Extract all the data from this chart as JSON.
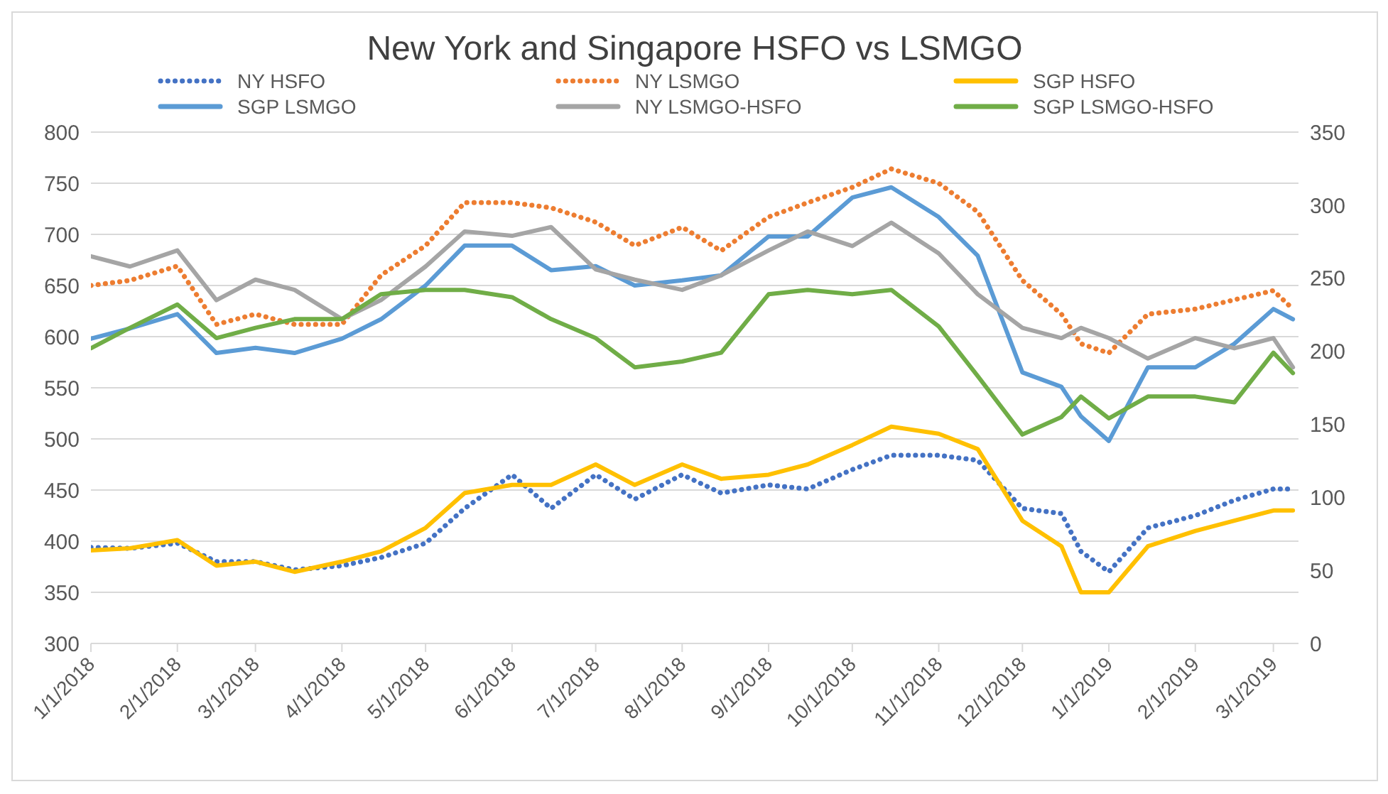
{
  "chart_data": {
    "type": "line",
    "title": "New York and Singapore HSFO vs LSMGO",
    "x": [
      "2018-01-01",
      "2018-01-15",
      "2018-02-01",
      "2018-02-15",
      "2018-03-01",
      "2018-03-15",
      "2018-04-01",
      "2018-04-15",
      "2018-05-01",
      "2018-05-15",
      "2018-06-01",
      "2018-06-15",
      "2018-07-01",
      "2018-07-15",
      "2018-08-01",
      "2018-08-15",
      "2018-09-01",
      "2018-09-15",
      "2018-10-01",
      "2018-10-15",
      "2018-11-01",
      "2018-11-15",
      "2018-12-01",
      "2018-12-15",
      "2018-12-22",
      "2019-01-01",
      "2019-01-15",
      "2019-02-01",
      "2019-02-15",
      "2019-03-01",
      "2019-03-08"
    ],
    "series": [
      {
        "name": "NY HSFO",
        "color": "#4472c4",
        "line_style": "dotted",
        "values": [
          394,
          393,
          398,
          380,
          380,
          372,
          376,
          384,
          398,
          432,
          465,
          432,
          465,
          441,
          465,
          447,
          455,
          451,
          470,
          484,
          484,
          479,
          432,
          427,
          390,
          370,
          413,
          425,
          440,
          451,
          451
        ]
      },
      {
        "name": "NY LSMGO",
        "color": "#ed7d31",
        "line_style": "dotted",
        "values": [
          650,
          655,
          669,
          612,
          622,
          612,
          612,
          660,
          689,
          731,
          731,
          726,
          712,
          689,
          707,
          684,
          717,
          731,
          746,
          764,
          750,
          722,
          655,
          622,
          593,
          584,
          622,
          627,
          636,
          645,
          627
        ]
      },
      {
        "name": "SGP HSFO",
        "color": "#ffc000",
        "line_style": "solid",
        "values": [
          391,
          393,
          401,
          376,
          380,
          370,
          380,
          390,
          413,
          447,
          455,
          455,
          475,
          455,
          475,
          461,
          465,
          475,
          494,
          512,
          505,
          490,
          420,
          395,
          350,
          350,
          395,
          410,
          420,
          430,
          430
        ]
      },
      {
        "name": "SGP LSMGO",
        "color": "#5b9bd5",
        "line_style": "solid",
        "values": [
          598,
          608,
          622,
          584,
          589,
          584,
          598,
          617,
          650,
          689,
          689,
          665,
          669,
          650,
          655,
          660,
          698,
          698,
          736,
          746,
          717,
          679,
          565,
          551,
          522,
          498,
          570,
          570,
          593,
          627,
          617
        ]
      },
      {
        "name": "NY LSMGO-HSFO",
        "color": "#a5a5a5",
        "line_style": "solid",
        "axis": "y2",
        "values": [
          265,
          258,
          269,
          235,
          249,
          242,
          222,
          235,
          258,
          282,
          279,
          285,
          256,
          249,
          242,
          252,
          269,
          282,
          272,
          288,
          267,
          239,
          216,
          209,
          216,
          209,
          195,
          209,
          202,
          209,
          189
        ]
      },
      {
        "name": "SGP LSMGO-HSFO",
        "color": "#70ad47",
        "line_style": "solid",
        "axis": "y2",
        "values": [
          202,
          216,
          232,
          209,
          216,
          222,
          222,
          239,
          242,
          242,
          237,
          222,
          209,
          189,
          193,
          199,
          239,
          242,
          239,
          242,
          217,
          183,
          143,
          155,
          169,
          154,
          169,
          169,
          165,
          199,
          185
        ]
      }
    ],
    "xlim": [
      "2018-01-01",
      "2019-03-10"
    ],
    "xticks": [
      {
        "value": "2018-01-01",
        "label": "1/1/2018"
      },
      {
        "value": "2018-02-01",
        "label": "2/1/2018"
      },
      {
        "value": "2018-03-01",
        "label": "3/1/2018"
      },
      {
        "value": "2018-04-01",
        "label": "4/1/2018"
      },
      {
        "value": "2018-05-01",
        "label": "5/1/2018"
      },
      {
        "value": "2018-06-01",
        "label": "6/1/2018"
      },
      {
        "value": "2018-07-01",
        "label": "7/1/2018"
      },
      {
        "value": "2018-08-01",
        "label": "8/1/2018"
      },
      {
        "value": "2018-09-01",
        "label": "9/1/2018"
      },
      {
        "value": "2018-10-01",
        "label": "10/1/2018"
      },
      {
        "value": "2018-11-01",
        "label": "11/1/2018"
      },
      {
        "value": "2018-12-01",
        "label": "12/1/2018"
      },
      {
        "value": "2019-01-01",
        "label": "1/1/2019"
      },
      {
        "value": "2019-02-01",
        "label": "2/1/2019"
      },
      {
        "value": "2019-03-01",
        "label": "3/1/2019"
      }
    ],
    "ylim": [
      300,
      800
    ],
    "yticks": [
      300,
      350,
      400,
      450,
      500,
      550,
      600,
      650,
      700,
      750,
      800
    ],
    "y2lim": [
      0,
      350
    ],
    "y2ticks": [
      0,
      50,
      100,
      150,
      200,
      250,
      300,
      350
    ],
    "grid": "y",
    "legend": "top",
    "marker": "none"
  }
}
